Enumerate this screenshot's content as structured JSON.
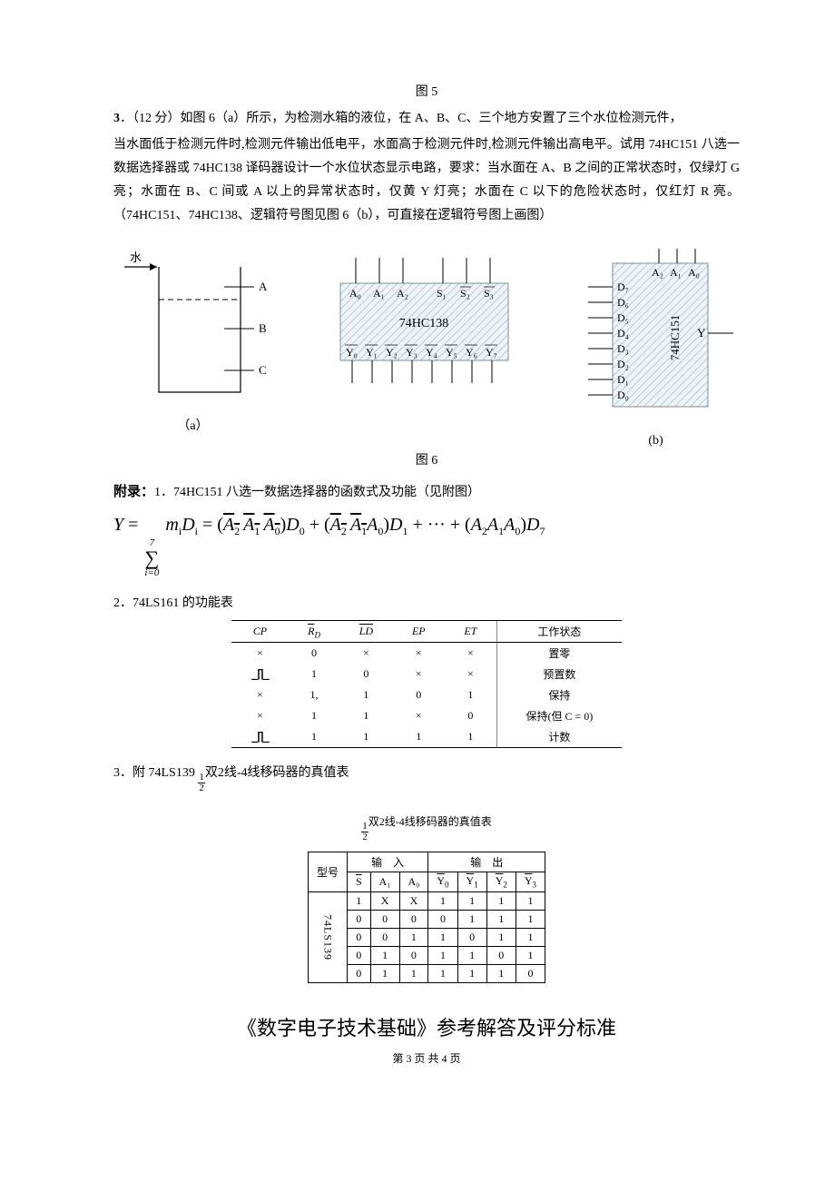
{
  "fig5_caption": "图 5",
  "q3": {
    "num": "3",
    "points": "（12 分）",
    "head": "如图 6（a）所示，为检测水箱的液位，在 A、B、C、三个地方安置了三个水位检测元件，",
    "body": "当水面低于检测元件时,检测元件输出低电平，水面高于检测元件时,检测元件输出高电平。试用 74HC151 八选一数据选择器或 74HC138 译码器设计一个水位状态显示电路，要求：当水面在 A、B 之间的正常状态时，仅绿灯 G 亮；水面在 B、C 间或 A 以上的异常状态时，仅黄 Y 灯亮；水面在 C 以下的危险状态时，仅红灯 R 亮。（74HC151、74HC138、逻辑符号图见图 6（b），可直接在逻辑符号图上画图）"
  },
  "diag_a": {
    "water": "水",
    "A": "A",
    "B": "B",
    "C": "C",
    "caption": "（a）"
  },
  "diag_138": {
    "title": "74HC138",
    "top": [
      "A₀",
      "A₁",
      "A₂",
      "S₁",
      "S₂",
      "S₃"
    ],
    "bottom": [
      "Y₀",
      "Y₁",
      "Y₂",
      "Y₃",
      "Y₄",
      "Y₅",
      "Y₆",
      "Y₇"
    ]
  },
  "diag_151": {
    "title": "74HC151",
    "top": [
      "A₂",
      "A₁",
      "A₀"
    ],
    "left": [
      "D₇",
      "D₆",
      "D₅",
      "D₄",
      "D₃",
      "D₂",
      "D₁",
      "D₀"
    ],
    "right": "Y",
    "caption": "(b)"
  },
  "fig6_caption": "图 6",
  "appendix": {
    "label": "附录：",
    "item1": "1．74HC151 八选一数据选择器的函数式及功能（见附图）"
  },
  "formula": {
    "lhs": "Y",
    "sum_upper": "7",
    "sum_lower": "i=0",
    "term_mi": "m",
    "term_Di": "D",
    "expansion": [
      {
        "bits": "A₂ A₁ A₀",
        "ov": [
          1,
          1,
          1
        ],
        "D": "D₀"
      },
      {
        "bits": "A₂ A₁ A₀",
        "ov": [
          1,
          1,
          0
        ],
        "D": "D₁"
      },
      {
        "dots": "···"
      },
      {
        "bits": "A₂A₁A₀",
        "ov": [
          0,
          0,
          0
        ],
        "D": "D₇"
      }
    ]
  },
  "sec2": "2．74LS161 的功能表",
  "tbl161": {
    "head": [
      "CP",
      "R̅D",
      "L̅D̅",
      "EP",
      "ET",
      "工作状态"
    ],
    "rows": [
      [
        "×",
        "0",
        "×",
        "×",
        "×",
        "置零"
      ],
      [
        "⎍",
        "1",
        "0",
        "×",
        "×",
        "预置数"
      ],
      [
        "×",
        "1,",
        "1",
        "0",
        "1",
        "保持"
      ],
      [
        "×",
        "1",
        "1",
        "×",
        "0",
        "保持(但 C = 0)"
      ],
      [
        "⎍",
        "1",
        "1",
        "1",
        "1",
        "计数"
      ]
    ]
  },
  "sec3": {
    "prefix": "3．附 74LS139 ",
    "frac_n": "1",
    "frac_d": "2",
    "suffix": "双2线-4线移码器的真值表"
  },
  "t139_caption_prefix": "",
  "t139_caption_frac_n": "1",
  "t139_caption_frac_d": "2",
  "t139_caption_suffix": "双2线-4线移码器的真值表",
  "tbl139": {
    "model": "74LS139",
    "type_lbl": "型号",
    "in_lbl": "输　入",
    "out_lbl": "输　出",
    "in_head": [
      "S̅",
      "A₁",
      "A₀"
    ],
    "out_head": [
      "Y̅₀",
      "Y̅₁",
      "Y̅₂",
      "Y̅₃"
    ],
    "rows": [
      [
        "1",
        "X",
        "X",
        "1",
        "1",
        "1",
        "1"
      ],
      [
        "0",
        "0",
        "0",
        "0",
        "1",
        "1",
        "1"
      ],
      [
        "0",
        "0",
        "1",
        "1",
        "0",
        "1",
        "1"
      ],
      [
        "0",
        "1",
        "0",
        "1",
        "1",
        "0",
        "1"
      ],
      [
        "0",
        "1",
        "1",
        "1",
        "1",
        "1",
        "0"
      ]
    ]
  },
  "doc_title": "《数字电子技术基础》参考解答及评分标准",
  "footer": "第 3 页 共 4 页",
  "colors": {
    "hatch": "#d6e3ec",
    "hatch_border": "#9bb3c6"
  }
}
